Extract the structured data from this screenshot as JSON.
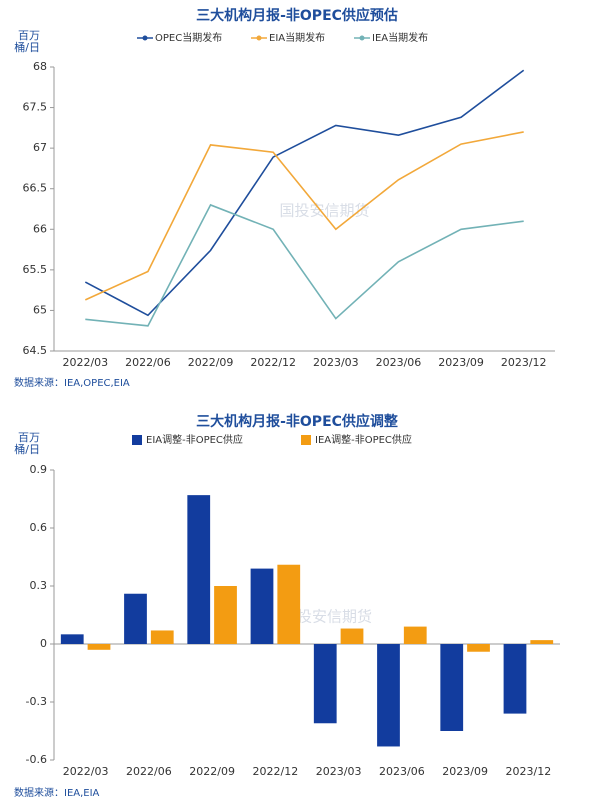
{
  "chart_data": [
    {
      "type": "line",
      "title": "三大机构月报-非OPEC供应预估",
      "y_label": "百万桶/日",
      "source": "数据来源：IEA,OPEC,EIA",
      "watermark": "国投安信期货",
      "categories": [
        "2022/03",
        "2022/06",
        "2022/09",
        "2022/12",
        "2023/03",
        "2023/06",
        "2023/09",
        "2023/12"
      ],
      "series": [
        {
          "name": "OPEC当期发布",
          "color": "#1f4e9c",
          "values": [
            65.35,
            64.94,
            65.74,
            66.89,
            67.28,
            67.16,
            67.38,
            67.96
          ]
        },
        {
          "name": "EIA当期发布",
          "color": "#f2a83a",
          "values": [
            65.13,
            65.48,
            67.04,
            66.95,
            66.0,
            66.61,
            67.05,
            67.2
          ]
        },
        {
          "name": "IEA当期发布",
          "color": "#72b2b6",
          "values": [
            64.89,
            64.81,
            66.3,
            66.0,
            64.9,
            65.6,
            66.0,
            66.1
          ]
        }
      ],
      "ylim": [
        64.5,
        68
      ],
      "yticks": [
        64.5,
        65,
        65.5,
        66,
        66.5,
        67,
        67.5,
        68
      ]
    },
    {
      "type": "bar",
      "title": "三大机构月报-非OPEC供应调整",
      "y_label": "百万桶/日",
      "source": "数据来源：IEA,EIA",
      "watermark": "国投安信期货",
      "categories": [
        "2022/03",
        "2022/06",
        "2022/09",
        "2022/12",
        "2023/03",
        "2023/06",
        "2023/09",
        "2023/12"
      ],
      "series": [
        {
          "name": "EIA调整-非OPEC供应",
          "color": "#123c9e",
          "values": [
            0.05,
            0.26,
            0.77,
            0.39,
            -0.41,
            -0.53,
            -0.45,
            -0.36
          ]
        },
        {
          "name": "IEA调整-非OPEC供应",
          "color": "#f39c12",
          "values": [
            -0.03,
            0.07,
            0.3,
            0.41,
            0.08,
            0.09,
            -0.04,
            0.02
          ]
        }
      ],
      "ylim": [
        -0.6,
        0.9
      ],
      "yticks": [
        -0.6,
        -0.3,
        0,
        0.3,
        0.6,
        0.9
      ]
    }
  ]
}
